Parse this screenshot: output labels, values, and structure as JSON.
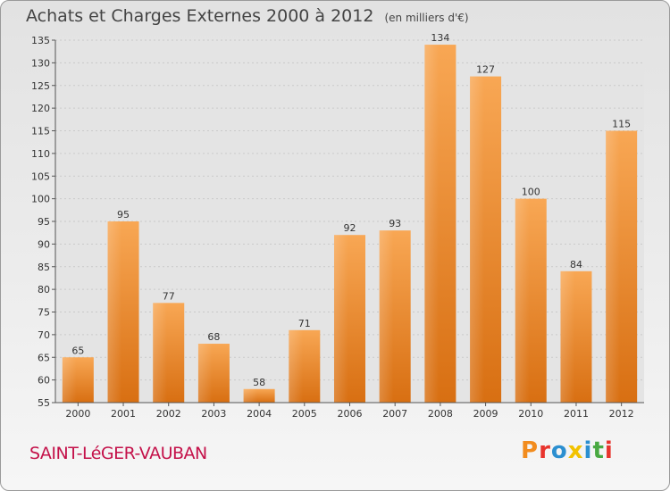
{
  "header": {
    "title": "Achats et Charges Externes 2000 à 2012",
    "unit": "(en milliers d'€)"
  },
  "footer": {
    "commune": "SAINT-LéGER-VAUBAN",
    "logo_text": "Proxiti",
    "logo_colors": [
      "#f28c1e",
      "#e8342d",
      "#2c8fd0",
      "#f2c200",
      "#2c8fd0",
      "#49a942",
      "#e8342d"
    ]
  },
  "chart_data": {
    "type": "bar",
    "categories": [
      "2000",
      "2001",
      "2002",
      "2003",
      "2004",
      "2005",
      "2006",
      "2007",
      "2008",
      "2009",
      "2010",
      "2011",
      "2012"
    ],
    "values": [
      65,
      95,
      77,
      68,
      58,
      71,
      92,
      93,
      134,
      127,
      100,
      84,
      115
    ],
    "ylim": [
      55,
      135
    ],
    "yticks": [
      55,
      60,
      65,
      70,
      75,
      80,
      85,
      90,
      95,
      100,
      105,
      110,
      115,
      120,
      125,
      130,
      135
    ],
    "grid": true,
    "bar_color": "#f0922e"
  }
}
